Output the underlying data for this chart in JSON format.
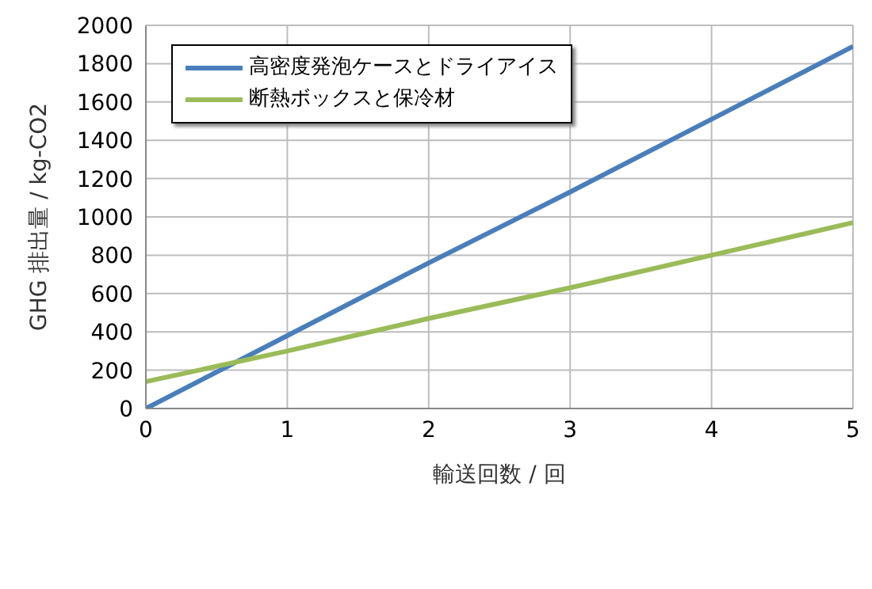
{
  "chart_data": {
    "type": "line",
    "xlabel": "輸送回数 / 回",
    "ylabel": "GHG 排出量 / kg-CO2",
    "x": [
      0,
      1,
      2,
      3,
      4,
      5
    ],
    "series": [
      {
        "name": "高密度発泡ケースとドライアイス",
        "color": "#4a7ebb",
        "values": [
          0,
          380,
          760,
          1130,
          1510,
          1890
        ]
      },
      {
        "name": "断熱ボックスと保冷材",
        "color": "#9bbb59",
        "values": [
          140,
          300,
          470,
          630,
          800,
          970
        ]
      }
    ],
    "xlim": [
      0,
      5
    ],
    "xticks": [
      0,
      1,
      2,
      3,
      4,
      5
    ],
    "ylim": [
      0,
      2000
    ],
    "yticks": [
      0,
      200,
      400,
      600,
      800,
      1000,
      1200,
      1400,
      1600,
      1800,
      2000
    ],
    "grid": true,
    "legend": "top left",
    "marker": "none",
    "line_style": "solid"
  }
}
